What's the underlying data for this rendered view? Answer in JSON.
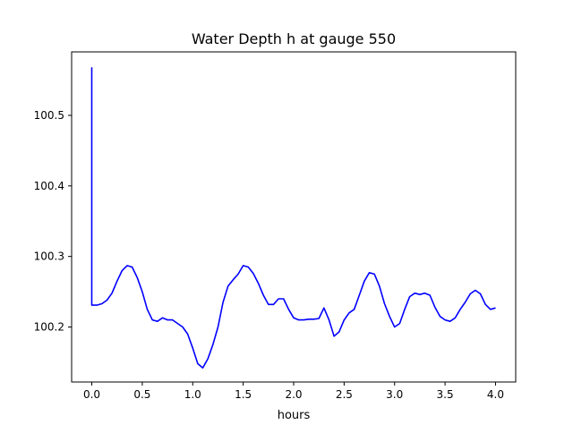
{
  "chart_data": {
    "type": "line",
    "title": "Water Depth h at gauge 550",
    "xlabel": "hours",
    "ylabel": "",
    "xlim": [
      -0.2,
      4.2
    ],
    "ylim": [
      100.122,
      100.59
    ],
    "xticks": [
      0.0,
      0.5,
      1.0,
      1.5,
      2.0,
      2.5,
      3.0,
      3.5,
      4.0
    ],
    "xtick_labels": [
      "0.0",
      "0.5",
      "1.0",
      "1.5",
      "2.0",
      "2.5",
      "3.0",
      "3.5",
      "4.0"
    ],
    "yticks": [
      100.2,
      100.3,
      100.4,
      100.5
    ],
    "ytick_labels": [
      "100.2",
      "100.3",
      "100.4",
      "100.5"
    ],
    "grid": false,
    "legend": "none",
    "series": [
      {
        "color": "#0000ff",
        "x": [
          0.0,
          0.0,
          0.05,
          0.1,
          0.15,
          0.2,
          0.25,
          0.3,
          0.35,
          0.4,
          0.45,
          0.5,
          0.55,
          0.6,
          0.65,
          0.7,
          0.75,
          0.8,
          0.85,
          0.9,
          0.95,
          1.0,
          1.05,
          1.1,
          1.15,
          1.2,
          1.25,
          1.3,
          1.35,
          1.4,
          1.45,
          1.5,
          1.55,
          1.6,
          1.65,
          1.7,
          1.75,
          1.8,
          1.85,
          1.9,
          1.95,
          2.0,
          2.05,
          2.1,
          2.15,
          2.2,
          2.25,
          2.3,
          2.35,
          2.4,
          2.45,
          2.5,
          2.55,
          2.6,
          2.65,
          2.7,
          2.75,
          2.8,
          2.85,
          2.9,
          2.95,
          3.0,
          3.05,
          3.1,
          3.15,
          3.2,
          3.25,
          3.3,
          3.35,
          3.4,
          3.45,
          3.5,
          3.55,
          3.6,
          3.65,
          3.7,
          3.75,
          3.8,
          3.85,
          3.9,
          3.95,
          4.0
        ],
        "y": [
          100.568,
          100.231,
          100.231,
          100.233,
          100.238,
          100.248,
          100.265,
          100.28,
          100.287,
          100.285,
          100.27,
          100.25,
          100.225,
          100.21,
          100.208,
          100.213,
          100.21,
          100.21,
          100.205,
          100.2,
          100.19,
          100.17,
          100.148,
          100.142,
          100.155,
          100.175,
          100.2,
          100.235,
          100.258,
          100.267,
          100.275,
          100.287,
          100.285,
          100.276,
          100.262,
          100.245,
          100.232,
          100.232,
          100.24,
          100.24,
          100.225,
          100.213,
          100.21,
          100.21,
          100.211,
          100.211,
          100.212,
          100.227,
          100.21,
          100.187,
          100.193,
          100.21,
          100.22,
          100.225,
          100.245,
          100.265,
          100.277,
          100.275,
          100.258,
          100.233,
          100.215,
          100.2,
          100.205,
          100.225,
          100.243,
          100.248,
          100.246,
          100.248,
          100.245,
          100.228,
          100.215,
          100.21,
          100.208,
          100.213,
          100.225,
          100.235,
          100.247,
          100.252,
          100.247,
          100.232,
          100.225,
          100.227
        ]
      }
    ]
  }
}
